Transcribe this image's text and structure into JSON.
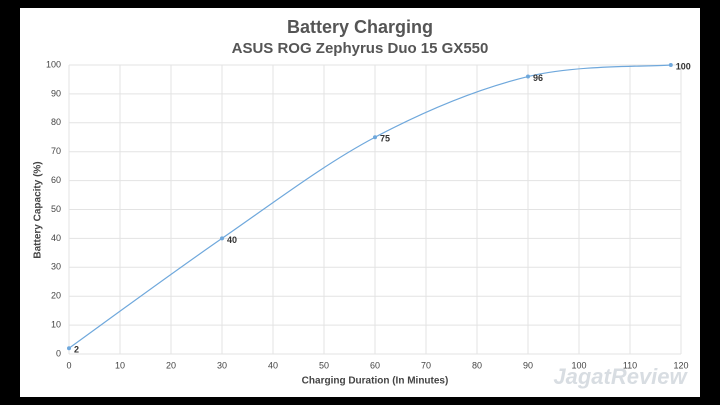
{
  "chart_data": {
    "type": "line",
    "title": "Battery Charging",
    "subtitle": "ASUS ROG Zephyrus Duo 15 GX550",
    "x_label": "Charging Duration (In Minutes)",
    "y_label": "Battery Capacity (%)",
    "watermark": "JagatReview",
    "x": [
      0,
      30,
      60,
      90,
      118
    ],
    "series": [
      {
        "name": "Battery Capacity (%)",
        "color": "#6fa8dc",
        "values": [
          2,
          40,
          75,
          96,
          100
        ]
      }
    ],
    "xlim": [
      0,
      120
    ],
    "xticks": [
      0,
      10,
      20,
      30,
      40,
      50,
      60,
      70,
      80,
      90,
      100,
      110,
      120
    ],
    "ylim": [
      0,
      100
    ],
    "yticks": [
      0,
      10,
      20,
      30,
      40,
      50,
      60,
      70,
      80,
      90,
      100
    ],
    "grid": true
  }
}
